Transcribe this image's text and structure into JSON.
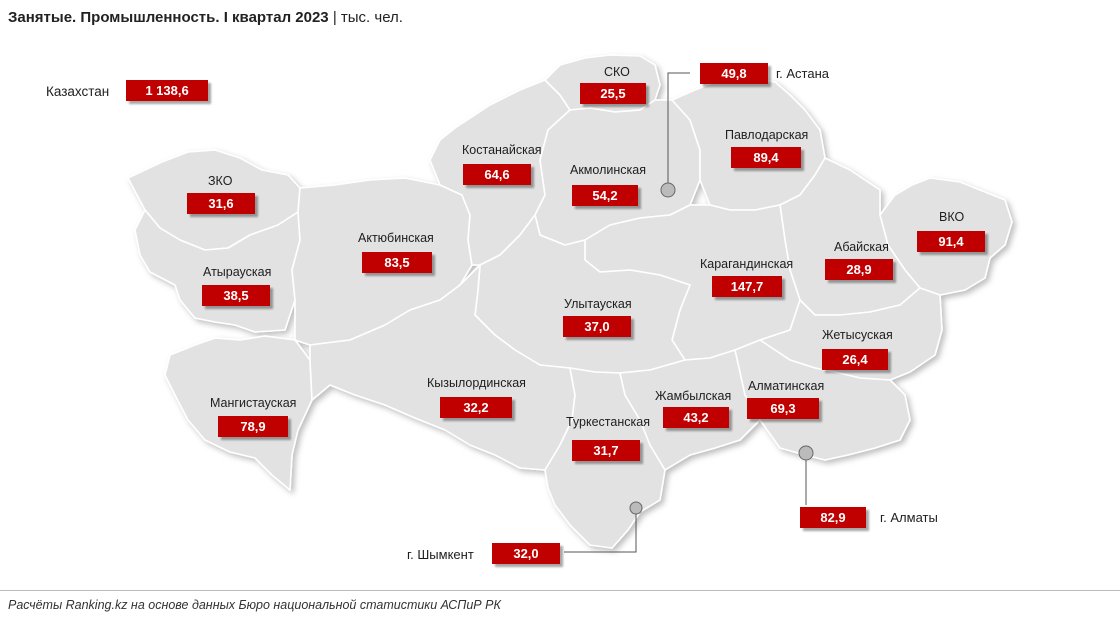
{
  "title": {
    "main": "Занятые. Промышленность. I квартал 2023",
    "unit": "тыс. чел."
  },
  "total": {
    "label": "Казахстан",
    "value": "1 138,6"
  },
  "regions": [
    {
      "id": "sko",
      "name": "СКО",
      "value": "25,5"
    },
    {
      "id": "kostanay",
      "name": "Костанайская",
      "value": "64,6"
    },
    {
      "id": "akmola",
      "name": "Акмолинская",
      "value": "54,2"
    },
    {
      "id": "pavlodar",
      "name": "Павлодарская",
      "value": "89,4"
    },
    {
      "id": "zko",
      "name": "ЗКО",
      "value": "31,6"
    },
    {
      "id": "aktobe",
      "name": "Актюбинская",
      "value": "83,5"
    },
    {
      "id": "vko",
      "name": "ВКО",
      "value": "91,4"
    },
    {
      "id": "abay",
      "name": "Абайская",
      "value": "28,9"
    },
    {
      "id": "karaganda",
      "name": "Карагандинская",
      "value": "147,7"
    },
    {
      "id": "atyrau",
      "name": "Атырауская",
      "value": "38,5"
    },
    {
      "id": "ulytau",
      "name": "Улытауская",
      "value": "37,0"
    },
    {
      "id": "zhetysu",
      "name": "Жетысуская",
      "value": "26,4"
    },
    {
      "id": "kyzylorda",
      "name": "Кызылординская",
      "value": "32,2"
    },
    {
      "id": "zhambyl",
      "name": "Жамбылская",
      "value": "43,2"
    },
    {
      "id": "almaty_reg",
      "name": "Алматинская",
      "value": "69,3"
    },
    {
      "id": "mangystau",
      "name": "Мангистауская",
      "value": "78,9"
    },
    {
      "id": "turkestan",
      "name": "Туркестанская",
      "value": "31,7"
    }
  ],
  "cities": [
    {
      "id": "astana",
      "name": "г. Астана",
      "value": "49,8"
    },
    {
      "id": "almaty",
      "name": "г. Алматы",
      "value": "82,9"
    },
    {
      "id": "shymkent",
      "name": "г. Шымкент",
      "value": "32,0"
    }
  ],
  "source": "Расчёты Ranking.kz на основе данных Бюро национальной статистики АСПиР РК",
  "colors": {
    "value_box": "#c00000",
    "map_fill": "#e2e2e2",
    "map_border": "#ffffff"
  }
}
